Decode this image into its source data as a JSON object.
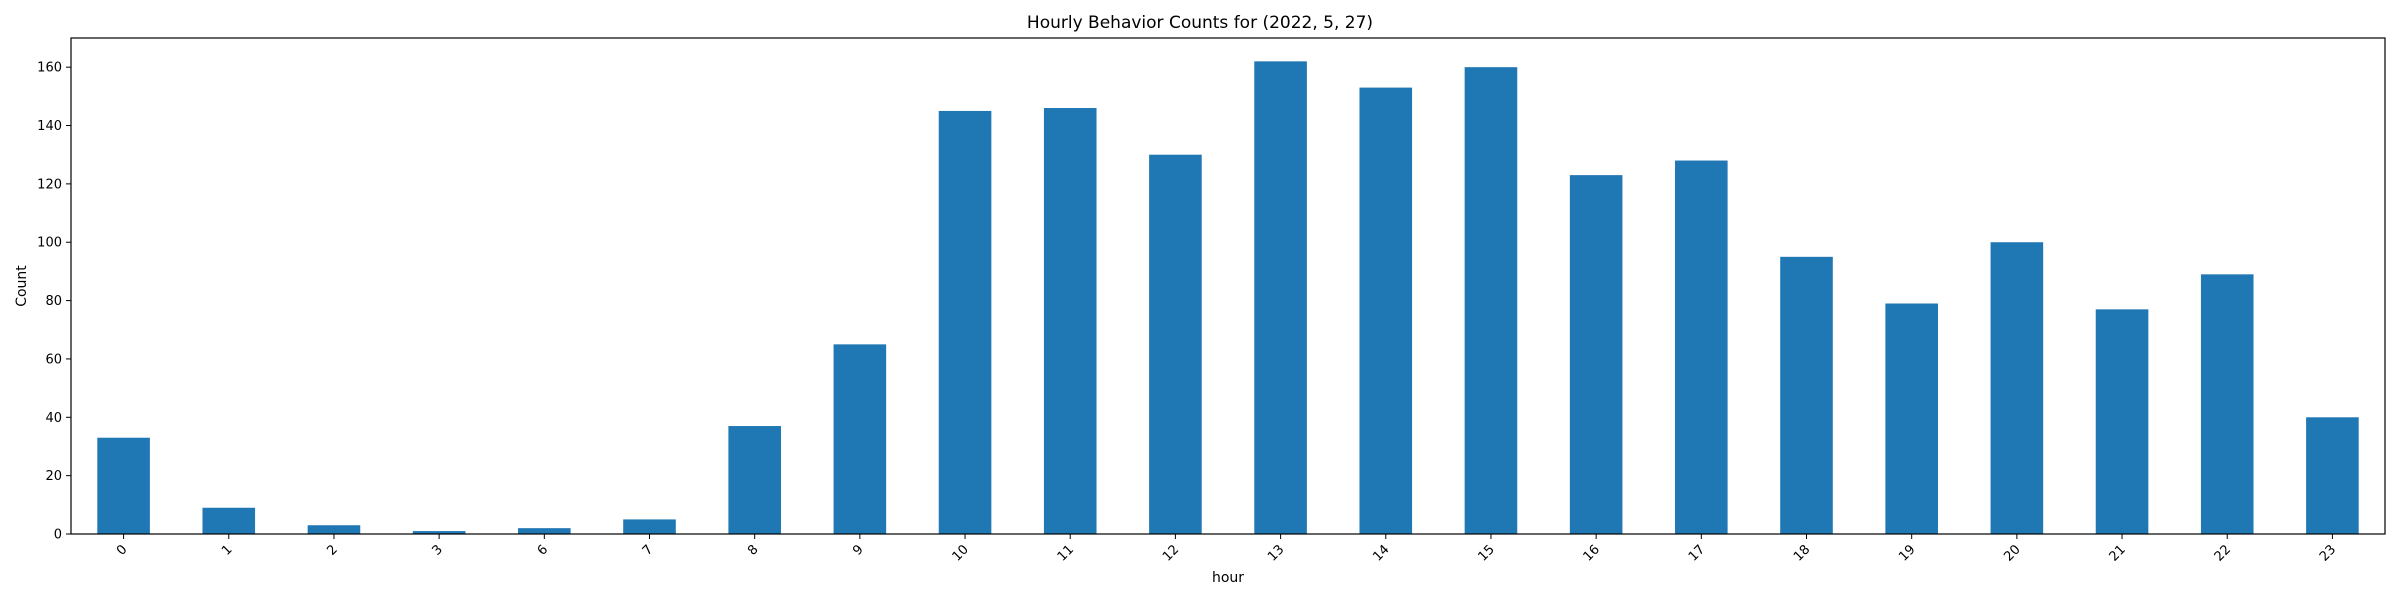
{
  "chart_data": {
    "type": "bar",
    "title": "Hourly Behavior Counts for (2022, 5, 27)",
    "xlabel": "hour",
    "ylabel": "Count",
    "categories": [
      "0",
      "1",
      "2",
      "3",
      "6",
      "7",
      "8",
      "9",
      "10",
      "11",
      "12",
      "13",
      "14",
      "15",
      "16",
      "17",
      "18",
      "19",
      "20",
      "21",
      "22",
      "23"
    ],
    "values": [
      33,
      9,
      3,
      1,
      2,
      5,
      37,
      65,
      145,
      146,
      130,
      162,
      153,
      160,
      123,
      128,
      95,
      79,
      100,
      77,
      89,
      40
    ],
    "ylim": [
      0,
      170
    ],
    "yticks": [
      0,
      20,
      40,
      60,
      80,
      100,
      120,
      140,
      160
    ],
    "bar_color": "#1f77b4",
    "grid": false,
    "legend": "none",
    "xtick_rotation_deg": 45
  }
}
